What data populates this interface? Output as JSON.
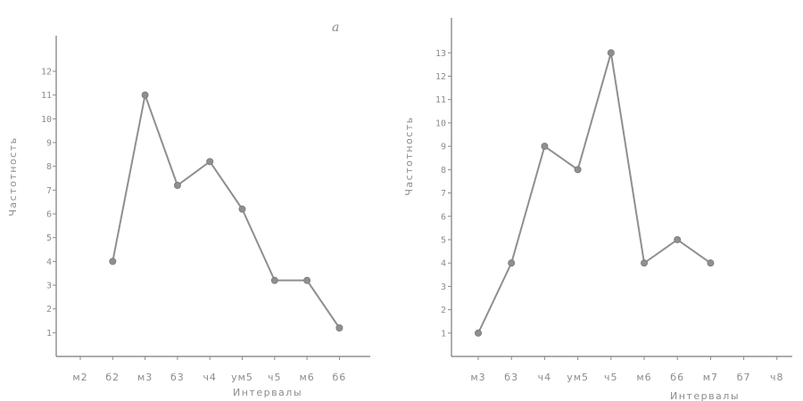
{
  "chart_data": [
    {
      "type": "line",
      "panel_label": "а",
      "title": "",
      "xlabel": "Интервалы",
      "ylabel": "Частотность",
      "categories": [
        "м2",
        "б2",
        "м3",
        "б3",
        "ч4",
        "ум5",
        "ч5",
        "м6",
        "б6"
      ],
      "ytick_labels": [
        "1",
        "2",
        "3",
        "4",
        "5",
        "6",
        "7",
        "8",
        "9",
        "10",
        "11",
        "12"
      ],
      "ylim": [
        0,
        13.5
      ],
      "grid": false,
      "series": [
        {
          "points": [
            {
              "x": "б2",
              "y": 4
            },
            {
              "x": "м3",
              "y": 11
            },
            {
              "x": "б3",
              "y": 7.2
            },
            {
              "x": "ч4",
              "y": 8.2
            },
            {
              "x": "ум5",
              "y": 6.2
            },
            {
              "x": "ч5",
              "y": 3.2
            },
            {
              "x": "м6",
              "y": 3.2
            },
            {
              "x": "б6",
              "y": 1.2
            }
          ]
        }
      ]
    },
    {
      "type": "line",
      "title": "",
      "xlabel": "Интервалы",
      "ylabel": "Частотность",
      "categories": [
        "м3",
        "б3",
        "ч4",
        "ум5",
        "ч5",
        "м6",
        "б6",
        "м7",
        "б7",
        "ч8"
      ],
      "ytick_labels": [
        "1",
        "2",
        "3",
        "4",
        "5",
        "6",
        "7",
        "8",
        "9",
        "10",
        "11",
        "12",
        "13"
      ],
      "ylim": [
        0,
        14.5
      ],
      "grid": false,
      "series": [
        {
          "points": [
            {
              "x": "м3",
              "y": 1
            },
            {
              "x": "б3",
              "y": 4
            },
            {
              "x": "ч4",
              "y": 9
            },
            {
              "x": "ум5",
              "y": 8
            },
            {
              "x": "ч5",
              "y": 13
            },
            {
              "x": "м6",
              "y": 4
            },
            {
              "x": "б6",
              "y": 5
            },
            {
              "x": "м7",
              "y": 4
            }
          ]
        }
      ]
    }
  ]
}
